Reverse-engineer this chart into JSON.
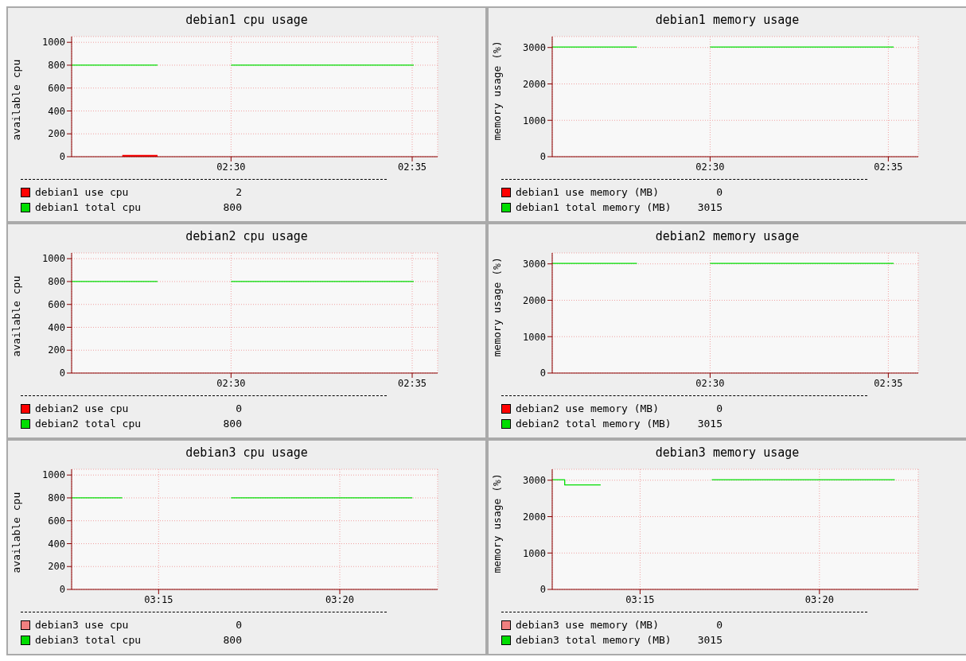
{
  "chart_data": [
    {
      "type": "line",
      "title": "debian1 cpu usage",
      "ylabel": "available cpu",
      "xlim": [
        2.4267,
        2.595
      ],
      "xticks": [
        {
          "value": 2.5,
          "label": "02:30"
        },
        {
          "value": 2.5833,
          "label": "02:35"
        }
      ],
      "ylim": [
        0,
        1050
      ],
      "yticks": [
        0,
        200,
        400,
        600,
        800,
        1000
      ],
      "grid": true,
      "legend": "bottom",
      "annotations": [
        "2",
        "800"
      ],
      "series": [
        {
          "name": "debian1 use cpu",
          "color": "#ff0000",
          "x": [
            2.45,
            2.4662
          ],
          "values": [
            5,
            5
          ]
        },
        {
          "name": "debian1 total cpu",
          "color": "#00dd00",
          "x": [
            2.4267,
            2.4662,
            2.48,
            2.5,
            2.584
          ],
          "values": [
            800,
            800,
            null,
            800,
            800
          ]
        }
      ]
    },
    {
      "type": "line",
      "title": "debian1 memory usage",
      "ylabel": "memory usage (%)",
      "xlim": [
        2.4262,
        2.5973
      ],
      "xticks": [
        {
          "value": 2.5,
          "label": "02:30"
        },
        {
          "value": 2.5833,
          "label": "02:35"
        }
      ],
      "ylim": [
        0,
        3300
      ],
      "yticks": [
        0,
        1000,
        2000,
        3000
      ],
      "grid": true,
      "legend": "bottom",
      "annotations": [
        "0",
        "3015"
      ],
      "series": [
        {
          "name": "debian1 use memory (MB)",
          "color": "#ff0000"
        },
        {
          "name": "debian1 total memory (MB)",
          "color": "#00dd00",
          "x": [
            2.4262,
            2.4658,
            2.48,
            2.5,
            2.5858
          ],
          "values": [
            3015,
            3015,
            null,
            3015,
            3015
          ]
        }
      ]
    },
    {
      "type": "line",
      "title": "debian2 cpu usage",
      "ylabel": "available cpu",
      "xlim": [
        2.4267,
        2.595
      ],
      "xticks": [
        {
          "value": 2.5,
          "label": "02:30"
        },
        {
          "value": 2.5833,
          "label": "02:35"
        }
      ],
      "ylim": [
        0,
        1050
      ],
      "yticks": [
        0,
        200,
        400,
        600,
        800,
        1000
      ],
      "grid": true,
      "legend": "bottom",
      "annotations": [
        "0",
        "800"
      ],
      "series": [
        {
          "name": "debian2 use cpu",
          "color": "#ff0000"
        },
        {
          "name": "debian2 total cpu",
          "color": "#00dd00",
          "x": [
            2.4267,
            2.4662,
            2.48,
            2.5,
            2.584
          ],
          "values": [
            800,
            800,
            null,
            800,
            800
          ]
        }
      ]
    },
    {
      "type": "line",
      "title": "debian2 memory usage",
      "ylabel": "memory usage (%)",
      "xlim": [
        2.4262,
        2.5973
      ],
      "xticks": [
        {
          "value": 2.5,
          "label": "02:30"
        },
        {
          "value": 2.5833,
          "label": "02:35"
        }
      ],
      "ylim": [
        0,
        3300
      ],
      "yticks": [
        0,
        1000,
        2000,
        3000
      ],
      "grid": true,
      "legend": "bottom",
      "annotations": [
        "0",
        "3015"
      ],
      "series": [
        {
          "name": "debian2 use memory (MB)",
          "color": "#ff0000"
        },
        {
          "name": "debian2 total memory (MB)",
          "color": "#00dd00",
          "x": [
            2.4262,
            2.4658,
            2.48,
            2.5,
            2.5858
          ],
          "values": [
            3015,
            3015,
            null,
            3015,
            3015
          ]
        }
      ]
    },
    {
      "type": "line",
      "title": "debian3 cpu usage",
      "ylabel": "available cpu",
      "xlim": [
        3.21,
        3.3783
      ],
      "xticks": [
        {
          "value": 3.25,
          "label": "03:15"
        },
        {
          "value": 3.3333,
          "label": "03:20"
        }
      ],
      "ylim": [
        0,
        1050
      ],
      "yticks": [
        0,
        200,
        400,
        600,
        800,
        1000
      ],
      "grid": true,
      "legend": "bottom",
      "annotations": [
        "0",
        "800"
      ],
      "series": [
        {
          "name": "debian3 use cpu",
          "color": "#f08080"
        },
        {
          "name": "debian3 total cpu",
          "color": "#00dd00",
          "x": [
            3.21,
            3.2333,
            3.25,
            3.2833,
            3.3667
          ],
          "values": [
            800,
            800,
            null,
            800,
            800
          ]
        }
      ]
    },
    {
      "type": "line",
      "title": "debian3 memory usage",
      "ylabel": "memory usage (%)",
      "xlim": [
        3.2092,
        3.3792
      ],
      "xticks": [
        {
          "value": 3.25,
          "label": "03:15"
        },
        {
          "value": 3.3333,
          "label": "03:20"
        }
      ],
      "ylim": [
        0,
        3300
      ],
      "yticks": [
        0,
        1000,
        2000,
        3000
      ],
      "grid": true,
      "legend": "bottom",
      "annotations": [
        "0",
        "3015"
      ],
      "series": [
        {
          "name": "debian3 use memory (MB)",
          "color": "#f08080"
        },
        {
          "name": "debian3 total memory (MB)",
          "color": "#00dd00",
          "x": [
            3.2092,
            3.215,
            3.215,
            3.2317,
            3.25,
            3.2833,
            3.3683
          ],
          "values": [
            3015,
            3015,
            2870,
            2870,
            null,
            3015,
            3015
          ]
        }
      ]
    }
  ]
}
